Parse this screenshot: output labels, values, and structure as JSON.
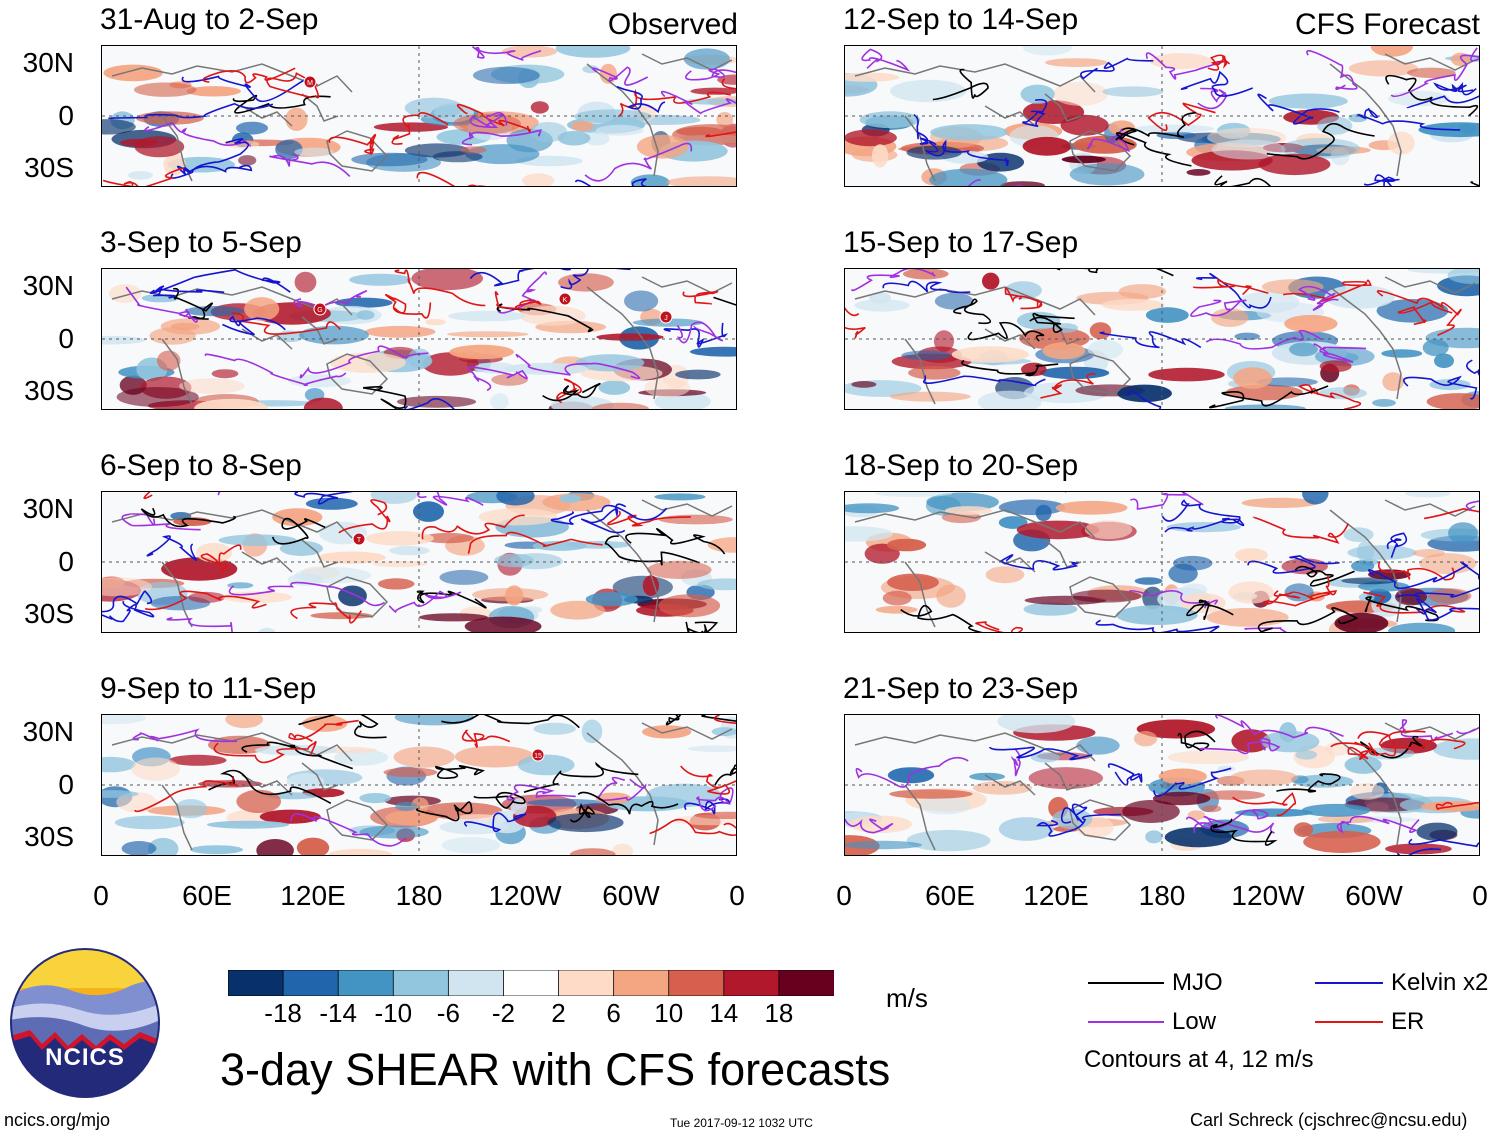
{
  "header": {
    "observed_label": "Observed",
    "forecast_label": "CFS Forecast"
  },
  "panels": {
    "left": [
      {
        "title": "31-Aug to 2-Sep"
      },
      {
        "title": "3-Sep to 5-Sep"
      },
      {
        "title": "6-Sep to 8-Sep"
      },
      {
        "title": "9-Sep to 11-Sep"
      }
    ],
    "right": [
      {
        "title": "12-Sep to 14-Sep"
      },
      {
        "title": "15-Sep to 17-Sep"
      },
      {
        "title": "18-Sep to 20-Sep"
      },
      {
        "title": "21-Sep to 23-Sep"
      }
    ]
  },
  "axes": {
    "lat_labels": [
      "30N",
      "0",
      "30S"
    ],
    "lon_labels": [
      "0",
      "60E",
      "120E",
      "180",
      "120W",
      "60W",
      "0"
    ]
  },
  "storm_markers": [
    {
      "panel": "31-Aug to 2-Sep",
      "letter": "M"
    },
    {
      "panel": "3-Sep to 5-Sep",
      "letter": "G"
    },
    {
      "panel": "3-Sep to 5-Sep",
      "letter": "K"
    },
    {
      "panel": "3-Sep to 5-Sep",
      "letter": "J"
    },
    {
      "panel": "6-Sep to 8-Sep",
      "letter": "T"
    },
    {
      "panel": "9-Sep to 11-Sep",
      "letter": "15"
    }
  ],
  "colorbar": {
    "ticks": [
      "-18",
      "-14",
      "-10",
      "-6",
      "-2",
      "2",
      "6",
      "10",
      "14",
      "18"
    ],
    "colors": [
      "#08306b",
      "#2166ac",
      "#4393c3",
      "#92c5de",
      "#d1e5f0",
      "#ffffff",
      "#fddbc7",
      "#f4a582",
      "#d6604d",
      "#b2182b",
      "#67001f"
    ],
    "units": "m/s"
  },
  "legend": {
    "items": [
      {
        "label": "MJO",
        "color": "#000000"
      },
      {
        "label": "Kelvin x2",
        "color": "#1515d0"
      },
      {
        "label": "Low",
        "color": "#a030e0"
      },
      {
        "label": "ER",
        "color": "#e01515"
      }
    ],
    "note": "Contours at 4, 12 m/s"
  },
  "logo": {
    "text": "NCICS"
  },
  "footer": {
    "title": "3-day SHEAR with CFS forecasts",
    "url": "ncics.org/mjo",
    "timestamp": "Tue 2017-09-12 1032 UTC",
    "credit": "Carl Schreck (cjschrec@ncsu.edu)"
  }
}
